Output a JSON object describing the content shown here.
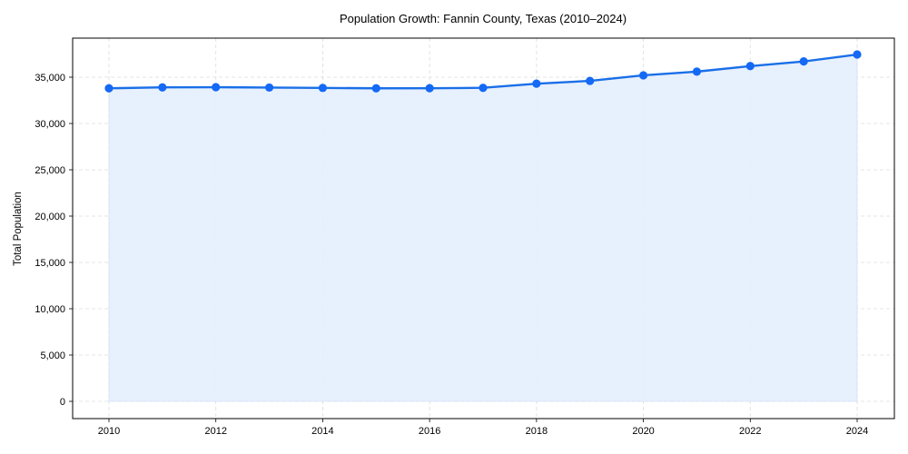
{
  "chart_data": {
    "type": "area",
    "title": "Population Growth: Fannin County, Texas (2010–2024)",
    "xlabel": "",
    "ylabel": "Total Population",
    "x": [
      2010,
      2011,
      2012,
      2013,
      2014,
      2015,
      2016,
      2017,
      2018,
      2019,
      2020,
      2021,
      2022,
      2023,
      2024
    ],
    "series": [
      {
        "name": "Total Population",
        "values": [
          33800,
          33900,
          33920,
          33880,
          33840,
          33800,
          33810,
          33850,
          34300,
          34600,
          35200,
          35600,
          36200,
          36700,
          37450
        ]
      }
    ],
    "xticks": [
      "2010",
      "2012",
      "2014",
      "2016",
      "2018",
      "2020",
      "2022",
      "2024"
    ],
    "yticks": [
      "0",
      "5,000",
      "10,000",
      "15,000",
      "20,000",
      "25,000",
      "30,000",
      "35,000"
    ],
    "xlim": [
      2009.3,
      2024.7
    ],
    "ylim": [
      -1870,
      39100
    ],
    "grid": true,
    "legend": "none",
    "colors": {
      "line": "#1a6fe8",
      "marker": "#1469f5",
      "fill": "#e4eefd",
      "grid": "#dddddd"
    }
  }
}
